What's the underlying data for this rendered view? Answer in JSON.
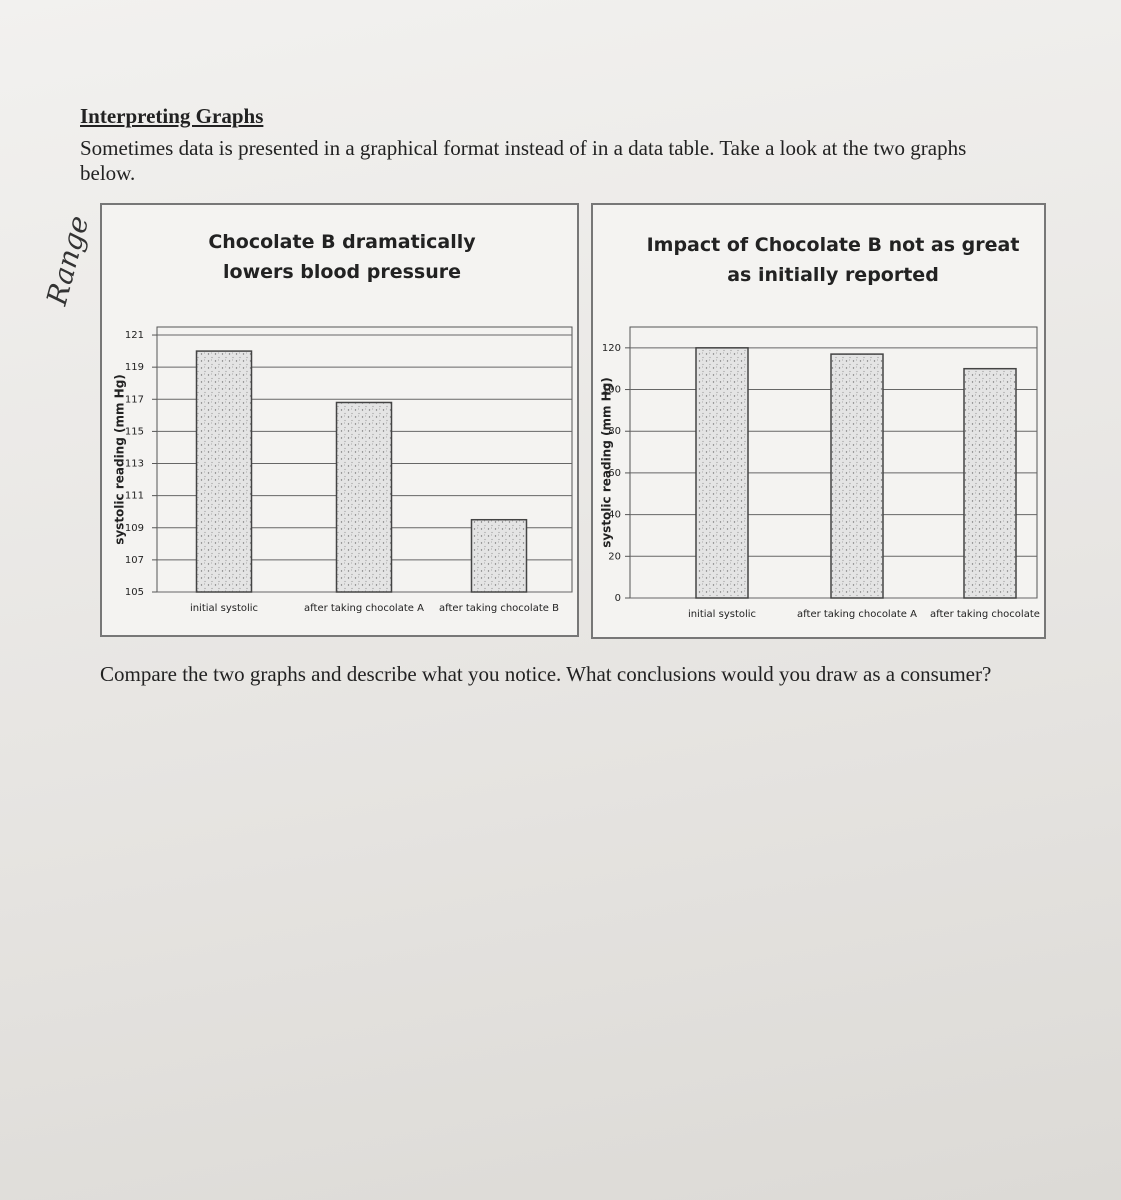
{
  "header": {
    "title": "Interpreting Graphs",
    "intro": "Sometimes data is presented in a graphical format instead of in a data table. Take a look at the two graphs below."
  },
  "handwriting": "Range",
  "chart_data": [
    {
      "type": "bar",
      "title": "Chocolate B dramatically lowers blood pressure",
      "y_label": "systolic reading (mm Hg)",
      "categories": [
        "initial systolic",
        "after taking chocolate A",
        "after taking chocolate B"
      ],
      "values": [
        120,
        116.8,
        109.5
      ],
      "color": "#e4e4e4",
      "ylim": [
        105,
        121.5
      ],
      "yticks": [
        105,
        107,
        109,
        111,
        113,
        115,
        117,
        119,
        121
      ],
      "grid": true
    },
    {
      "type": "bar",
      "title": "Impact of Chocolate B not as great as initially reported",
      "y_label": "systolic reading (mm Hg)",
      "categories": [
        "initial systolic",
        "after taking chocolate A",
        "after taking chocolate B"
      ],
      "values": [
        120,
        117,
        110
      ],
      "color": "#e4e4e4",
      "ylim": [
        0,
        130
      ],
      "yticks": [
        0,
        20,
        40,
        60,
        80,
        100,
        120
      ],
      "grid": true
    }
  ],
  "question": "Compare the two graphs and describe what you notice. What conclusions would you draw as a consumer?"
}
